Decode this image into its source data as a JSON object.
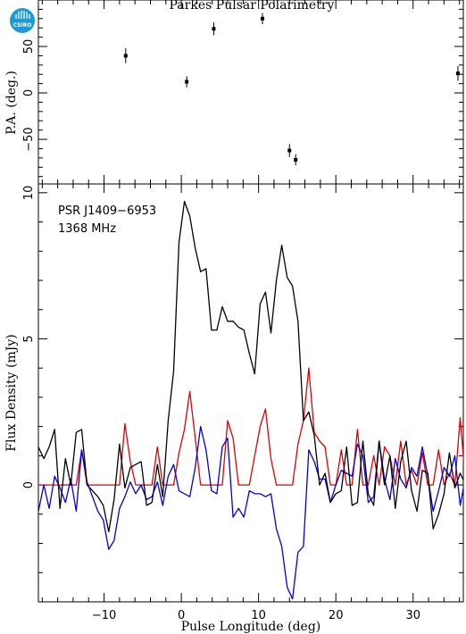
{
  "title": "Parkes Pulsar Polarimetry",
  "logo_text": "CSIRO",
  "colors": {
    "total": "#000000",
    "linear": "#e00000",
    "circular": "#0000dd",
    "logo": "#1d9ad6"
  },
  "chart_data": [
    {
      "type": "scatter",
      "panel": "top",
      "ylabel": "P.A. (deg.)",
      "xlim": [
        -18.5,
        36.5
      ],
      "ylim": [
        -98,
        100
      ],
      "yticks": [
        -50,
        0,
        50
      ],
      "points": [
        {
          "x": -7.2,
          "y": 40,
          "err": 8
        },
        {
          "x": 0.7,
          "y": 12,
          "err": 6
        },
        {
          "x": 4.2,
          "y": 69,
          "err": 7
        },
        {
          "x": 10.5,
          "y": 80,
          "err": 6
        },
        {
          "x": 14.0,
          "y": -62,
          "err": 7
        },
        {
          "x": 14.8,
          "y": -72,
          "err": 6
        },
        {
          "x": 35.8,
          "y": 21,
          "err": 8
        }
      ]
    },
    {
      "type": "line",
      "panel": "bottom",
      "xlabel": "Pulse Longitude (deg)",
      "ylabel": "Flux Density (mJy)",
      "xlim": [
        -18.5,
        36.5
      ],
      "ylim": [
        -4.0,
        10.3
      ],
      "xticks": [
        -10,
        0,
        10,
        20,
        30
      ],
      "yticks": [
        0,
        5,
        10
      ],
      "annotations": [
        "PSR J1409−6953",
        "1368 MHz"
      ],
      "x_start": -18.5,
      "x_step": 0.7,
      "series": [
        {
          "key": "total",
          "values": [
            1.3,
            0.9,
            1.3,
            1.9,
            -0.8,
            0.9,
            0.0,
            1.8,
            1.9,
            0.0,
            -0.2,
            -0.4,
            -0.7,
            -1.6,
            -0.5,
            1.4,
            -0.1,
            0.6,
            0.7,
            0.8,
            -0.7,
            -0.6,
            0.7,
            -0.4,
            2.2,
            3.9,
            8.3,
            9.7,
            9.2,
            8.1,
            7.3,
            7.4,
            5.3,
            5.3,
            6.1,
            5.6,
            5.6,
            5.4,
            5.3,
            4.5,
            3.8,
            6.2,
            6.6,
            5.2,
            7.0,
            8.2,
            7.1,
            6.8,
            5.6,
            2.2,
            2.5,
            1.7,
            0.0,
            0.4,
            -0.6,
            -0.3,
            -0.2,
            1.3,
            -0.7,
            -0.6,
            1.5,
            -0.3,
            -0.7,
            1.5,
            0.0,
            1.0,
            -0.8,
            0.8,
            1.5,
            -0.2,
            -0.9,
            0.5,
            0.4,
            -1.5,
            -1.0,
            -0.3,
            1.1,
            -0.1,
            0.4,
            0.0,
            -0.6
          ]
        },
        {
          "key": "linear",
          "values": [
            0.0,
            0.0,
            0.0,
            0.0,
            0.0,
            0.0,
            0.0,
            0.0,
            1.2,
            0.0,
            0.0,
            0.0,
            0.0,
            0.0,
            0.0,
            0.0,
            2.1,
            0.8,
            0.0,
            0.0,
            0.0,
            0.0,
            1.3,
            0.0,
            0.0,
            0.0,
            1.1,
            1.9,
            3.2,
            1.6,
            0.0,
            0.0,
            0.0,
            0.0,
            0.0,
            2.2,
            1.6,
            0.0,
            0.0,
            0.0,
            1.0,
            2.0,
            2.6,
            0.9,
            0.0,
            0.0,
            0.0,
            0.0,
            1.4,
            2.2,
            4.0,
            1.8,
            1.5,
            1.3,
            0.0,
            0.0,
            1.2,
            0.0,
            0.0,
            1.9,
            0.0,
            0.0,
            1.0,
            0.0,
            1.3,
            1.0,
            0.0,
            1.5,
            0.0,
            0.5,
            0.0,
            1.1,
            0.0,
            0.0,
            1.2,
            0.0,
            0.4,
            0.0,
            2.3,
            0.0,
            0.0
          ]
        },
        {
          "key": "circular",
          "values": [
            -0.9,
            0.0,
            -0.8,
            0.3,
            -0.1,
            -0.6,
            0.2,
            -0.9,
            1.2,
            0.1,
            -0.4,
            -0.9,
            -1.2,
            -2.2,
            -1.9,
            -0.8,
            -0.4,
            0.1,
            -0.3,
            0.0,
            -0.5,
            -0.4,
            0.1,
            -0.7,
            0.3,
            0.7,
            -0.2,
            -0.3,
            -0.4,
            0.6,
            2.0,
            1.2,
            -0.2,
            -0.3,
            1.3,
            1.6,
            -1.1,
            -0.8,
            -1.1,
            -0.2,
            -0.3,
            -0.3,
            -0.4,
            -0.3,
            -1.5,
            -2.1,
            -3.5,
            -3.9,
            -2.3,
            -2.1,
            1.2,
            0.8,
            0.2,
            0.2,
            -0.6,
            0.0,
            0.5,
            0.4,
            0.3,
            1.4,
            1.0,
            -0.6,
            -0.4,
            1.5,
            0.2,
            -0.5,
            0.9,
            0.2,
            -0.1,
            0.6,
            0.3,
            1.3,
            0.3,
            -0.9,
            -0.2,
            0.6,
            0.3,
            1.0,
            -0.7,
            0.3,
            0.6
          ]
        }
      ]
    }
  ]
}
